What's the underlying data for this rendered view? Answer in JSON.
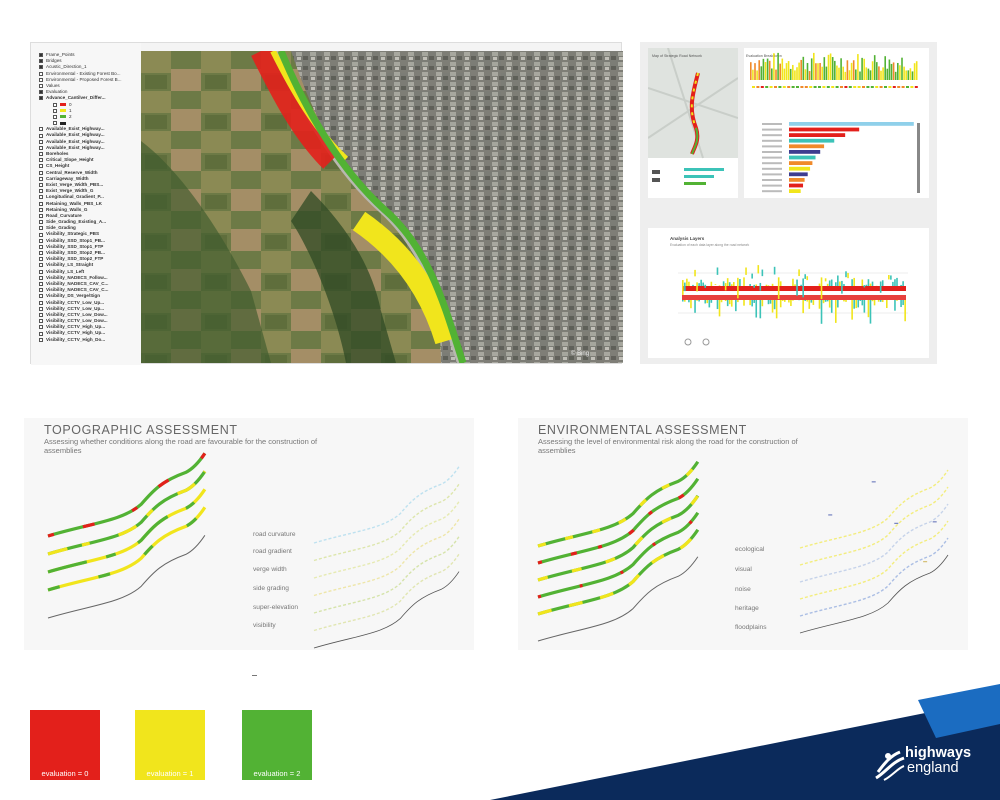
{
  "gis": {
    "layers": [
      {
        "label": "Frame_Points",
        "checked": true,
        "sub": false
      },
      {
        "label": "Bridges",
        "checked": true,
        "sub": false
      },
      {
        "label": "Acustic_Direction_1",
        "checked": true,
        "sub": false
      },
      {
        "label": "Environmental - Existing Forest Bo...",
        "checked": false,
        "sub": false
      },
      {
        "label": "Environmental - Proposed Forest B...",
        "checked": false,
        "sub": false
      },
      {
        "label": "Values",
        "checked": false,
        "sub": false
      },
      {
        "label": "Evaluation",
        "checked": true,
        "sub": false
      },
      {
        "label": "Advance_Cantilver_Differ...",
        "checked": true,
        "sub": false
      },
      {
        "label": "0",
        "checked": false,
        "sub": true,
        "swatch": "#e3201b"
      },
      {
        "label": "1",
        "checked": false,
        "sub": true,
        "swatch": "#f1e51c"
      },
      {
        "label": "2",
        "checked": false,
        "sub": true,
        "swatch": "#52b234"
      },
      {
        "label": "",
        "checked": false,
        "sub": true,
        "swatch": "#222222"
      },
      {
        "label": "Available_Exist_Highway...",
        "checked": false,
        "sub": false
      },
      {
        "label": "Available_Exist_Highway...",
        "checked": false,
        "sub": false
      },
      {
        "label": "Available_Exist_Highway...",
        "checked": false,
        "sub": false
      },
      {
        "label": "Available_Exist_Highway...",
        "checked": false,
        "sub": false
      },
      {
        "label": "Boreholes",
        "checked": false,
        "sub": false
      },
      {
        "label": "Critical_Slope_Height",
        "checked": false,
        "sub": false
      },
      {
        "label": "CS_Height",
        "checked": false,
        "sub": false
      },
      {
        "label": "Central_Reserve_Width",
        "checked": false,
        "sub": false
      },
      {
        "label": "Carriageway_Width",
        "checked": false,
        "sub": false
      },
      {
        "label": "Exist_Verge_Width_PBS...",
        "checked": false,
        "sub": false
      },
      {
        "label": "Exist_Verge_Width_G",
        "checked": false,
        "sub": false
      },
      {
        "label": "Longitudinal_Gradient_P...",
        "checked": false,
        "sub": false
      },
      {
        "label": "Retaining_Walls_PBS_LK",
        "checked": false,
        "sub": false
      },
      {
        "label": "Retaining_Walls_G",
        "checked": false,
        "sub": false
      },
      {
        "label": "Road_Curvature",
        "checked": false,
        "sub": false
      },
      {
        "label": "Side_Grading_Existing_A...",
        "checked": false,
        "sub": false
      },
      {
        "label": "Side_Grading",
        "checked": false,
        "sub": false
      },
      {
        "label": "Visibility_Strategic_PBS",
        "checked": false,
        "sub": false
      },
      {
        "label": "Visibility_SSD_Stop1_PB...",
        "checked": false,
        "sub": false
      },
      {
        "label": "Visibility_SSD_Stop1_FTP",
        "checked": false,
        "sub": false
      },
      {
        "label": "Visibility_SSD_Stop2_PB...",
        "checked": false,
        "sub": false
      },
      {
        "label": "Visibility_SSD_Stop2_FTP",
        "checked": false,
        "sub": false
      },
      {
        "label": "Visibility_LS_Straight",
        "checked": false,
        "sub": false
      },
      {
        "label": "Visibility_LS_Left",
        "checked": false,
        "sub": false
      },
      {
        "label": "Visibility_NADECS_Follow...",
        "checked": false,
        "sub": false
      },
      {
        "label": "Visibility_NADECS_CAV_C...",
        "checked": false,
        "sub": false
      },
      {
        "label": "Visibility_NADECS_CAV_C...",
        "checked": false,
        "sub": false
      },
      {
        "label": "Visibility_DS_Verge/Sign",
        "checked": false,
        "sub": false
      },
      {
        "label": "Visibility_CCTV_Low_Up...",
        "checked": false,
        "sub": false
      },
      {
        "label": "Visibility_CCTV_Low_Up...",
        "checked": false,
        "sub": false
      },
      {
        "label": "Visibility_CCTV_Low_Dow...",
        "checked": false,
        "sub": false
      },
      {
        "label": "Visibility_CCTV_Low_Dow...",
        "checked": false,
        "sub": false
      },
      {
        "label": "Visibility_CCTV_High_Up...",
        "checked": false,
        "sub": false
      },
      {
        "label": "Visibility_CCTV_High_Up...",
        "checked": false,
        "sub": false
      },
      {
        "label": "Visibility_CCTV_High_Do...",
        "checked": false,
        "sub": false
      }
    ],
    "map_credit": "© Bing"
  },
  "dashboard": {
    "map_title": "Map of Strategic Road Network",
    "top_chart_title": "Evaluation Breakdown",
    "analysis_title": "Analysis Layers",
    "analysis_subtitle": "Evaluation of each data layer along the road network"
  },
  "topographic": {
    "title": "TOPOGRAPHIC ASSESSMENT",
    "subtitle": "Assessing whether conditions along the road are favourable for the construction of assemblies",
    "criteria": [
      "road curvature",
      "road gradient",
      "verge width",
      "side grading",
      "super-elevation",
      "visibility"
    ]
  },
  "environmental": {
    "title": "ENVIRONMENTAL ASSESSMENT",
    "subtitle": "Assessing the level of environmental risk along the road for the construction of assemblies",
    "criteria": [
      "ecological",
      "visual",
      "noise",
      "heritage",
      "floodplains"
    ]
  },
  "legend": [
    {
      "label": "evaluation = 0",
      "color": "#e3201b"
    },
    {
      "label": "evaluation = 1",
      "color": "#f1e51c"
    },
    {
      "label": "evaluation = 2",
      "color": "#52b234"
    }
  ],
  "brand": {
    "line1": "highways",
    "line2": "england",
    "navy": "#0b2a5b",
    "blue": "#1b6cc1"
  },
  "colors": {
    "red": "#e3201b",
    "yellow": "#f1e51c",
    "green": "#52b234",
    "teal": "#3cc3b8",
    "orange": "#f08a2a",
    "skyblue": "#8fd0ea"
  }
}
